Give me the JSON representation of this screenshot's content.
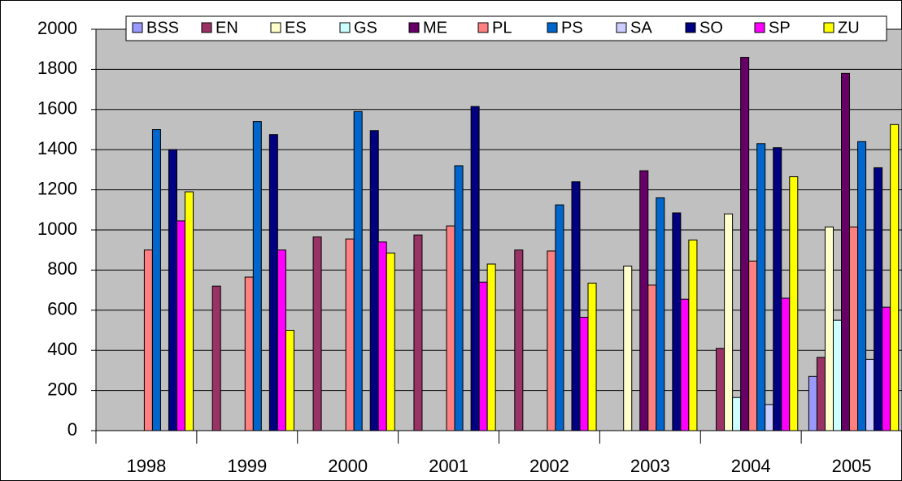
{
  "chart_data": {
    "type": "bar",
    "categories": [
      "1998",
      "1999",
      "2000",
      "2001",
      "2002",
      "2003",
      "2004",
      "2005"
    ],
    "series": [
      {
        "name": "BSS",
        "color": "#9999ff",
        "values": [
          null,
          null,
          null,
          null,
          null,
          null,
          null,
          270
        ]
      },
      {
        "name": "EN",
        "color": "#993366",
        "values": [
          null,
          720,
          965,
          975,
          900,
          null,
          410,
          365
        ]
      },
      {
        "name": "ES",
        "color": "#ffffcc",
        "values": [
          null,
          null,
          null,
          null,
          null,
          820,
          1080,
          1015
        ]
      },
      {
        "name": "GS",
        "color": "#ccffff",
        "values": [
          null,
          null,
          null,
          null,
          null,
          null,
          165,
          550
        ]
      },
      {
        "name": "ME",
        "color": "#660066",
        "values": [
          null,
          null,
          null,
          null,
          null,
          1295,
          1860,
          1780
        ]
      },
      {
        "name": "PL",
        "color": "#ff8080",
        "values": [
          900,
          765,
          955,
          1020,
          895,
          725,
          845,
          1015
        ]
      },
      {
        "name": "PS",
        "color": "#0066cc",
        "values": [
          1500,
          1540,
          1590,
          1320,
          1125,
          1160,
          1430,
          1440
        ]
      },
      {
        "name": "SA",
        "color": "#ccccff",
        "values": [
          null,
          null,
          null,
          null,
          null,
          null,
          130,
          355
        ]
      },
      {
        "name": "SO",
        "color": "#000080",
        "values": [
          1400,
          1475,
          1495,
          1615,
          1240,
          1085,
          1410,
          1310
        ]
      },
      {
        "name": "SP",
        "color": "#ff00ff",
        "values": [
          1045,
          900,
          940,
          740,
          565,
          655,
          660,
          615
        ]
      },
      {
        "name": "ZU",
        "color": "#ffff00",
        "values": [
          1190,
          500,
          885,
          830,
          735,
          950,
          1265,
          1525
        ]
      }
    ],
    "ylim": [
      0,
      2000
    ],
    "yticks": [
      0,
      200,
      400,
      600,
      800,
      1000,
      1200,
      1400,
      1600,
      1800,
      2000
    ],
    "grid": true,
    "legend": "top"
  }
}
